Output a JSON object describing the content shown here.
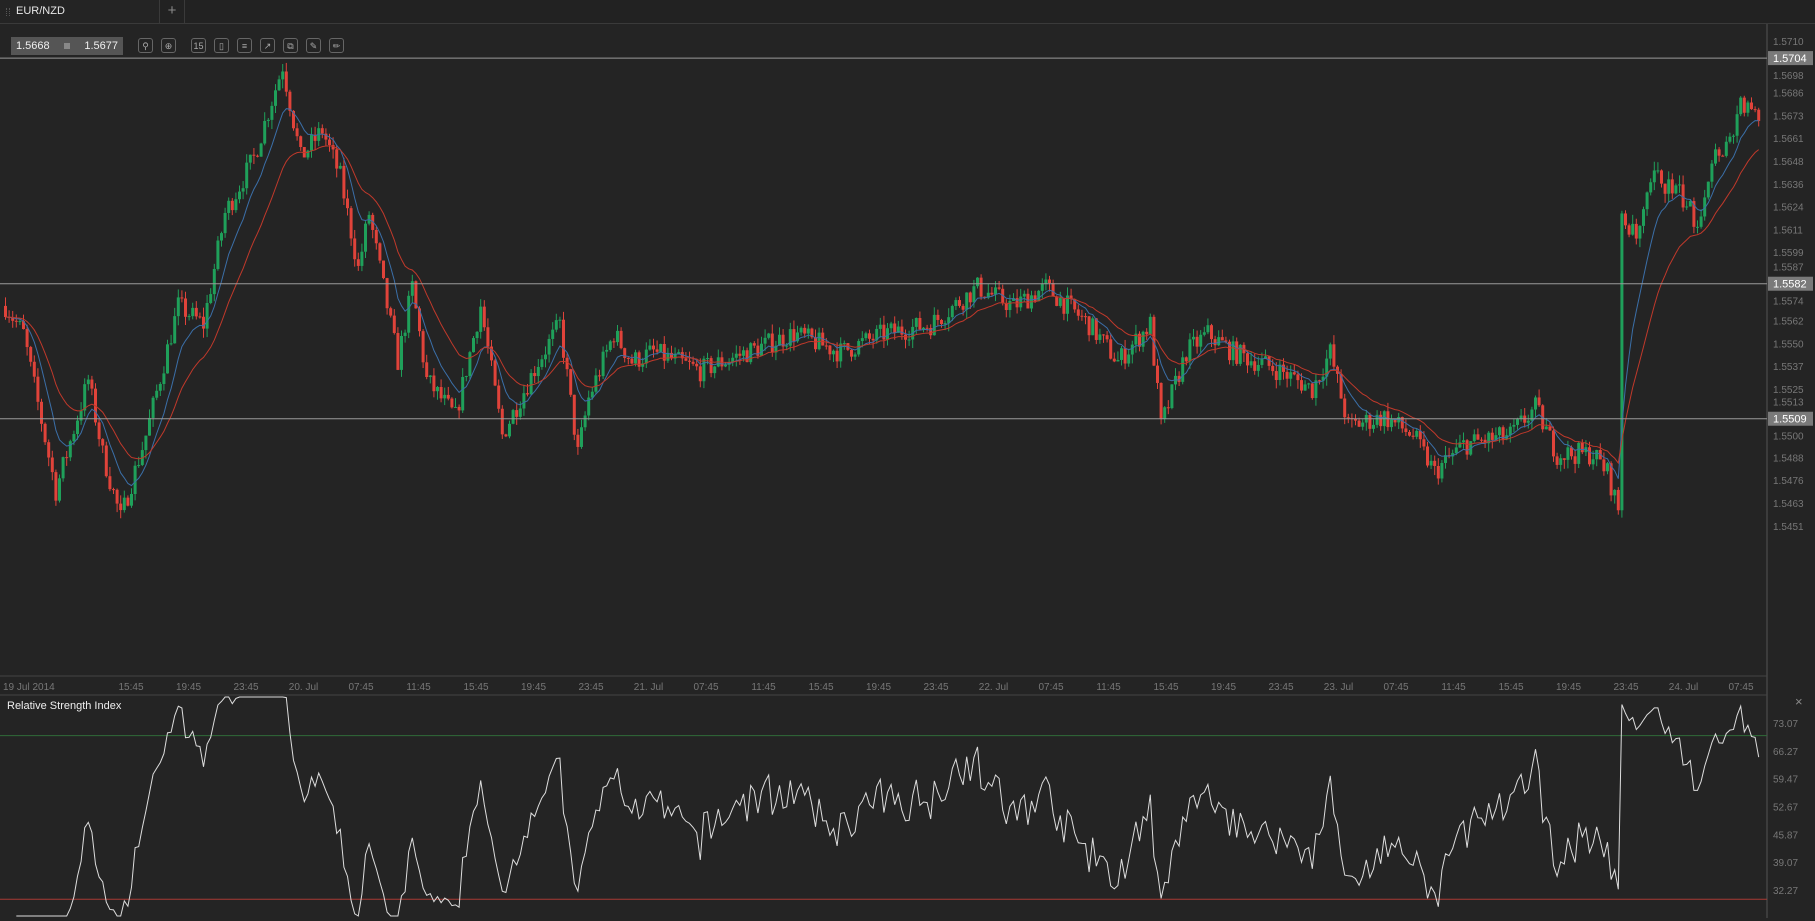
{
  "tab": {
    "symbol": "EUR/NZD",
    "add_label": "+"
  },
  "quote": {
    "bid": "1.5668",
    "ask": "1.5677"
  },
  "toolbar": {
    "icons": [
      "zoom-out-icon",
      "zoom-in-icon",
      "timeframe-15-icon",
      "chart-type-candles-icon",
      "indicators-icon",
      "chart-template-icon",
      "copy-icon",
      "edit-icon",
      "draw-icon"
    ],
    "timeframe_label": "15"
  },
  "colors": {
    "bull": "#1fa05a",
    "bear": "#e0433a",
    "ema_fast": "#3b6fa8",
    "ema_slow": "#c0392b",
    "rsi_line": "#dddddd",
    "rsi_upper": "#2f6b39",
    "rsi_lower": "#a83a34",
    "background": "#242424"
  },
  "price_axis": {
    "labels": [
      "1.5710",
      "1.5698",
      "1.5686",
      "1.5673",
      "1.5661",
      "1.5648",
      "1.5636",
      "1.5624",
      "1.5611",
      "1.5599",
      "1.5587",
      "1.5574",
      "1.5562",
      "1.5550",
      "1.5537",
      "1.5525",
      "1.5513",
      "1.5500",
      "1.5488",
      "1.5476",
      "1.5463",
      "1.5451"
    ],
    "range": [
      1.5451,
      1.571
    ]
  },
  "horizontal_lines": [
    {
      "price": 1.5704,
      "label": "1.5704"
    },
    {
      "price": 1.5582,
      "label": "1.5582"
    },
    {
      "price": 1.5509,
      "label": "1.5509"
    }
  ],
  "time_axis": {
    "labels": [
      "19 Jul 2014",
      "15:45",
      "19:45",
      "23:45",
      "20. Jul",
      "07:45",
      "11:45",
      "15:45",
      "19:45",
      "23:45",
      "21. Jul",
      "07:45",
      "11:45",
      "15:45",
      "19:45",
      "23:45",
      "22. Jul",
      "07:45",
      "11:45",
      "15:45",
      "19:45",
      "23:45",
      "23. Jul",
      "07:45",
      "11:45",
      "15:45",
      "19:45",
      "23:45",
      "24. Jul",
      "07:45"
    ]
  },
  "chart_data": {
    "type": "candlestick",
    "bar_interval": "15 min",
    "close_path": [
      [
        0,
        1.557
      ],
      [
        5,
        1.5555
      ],
      [
        14,
        1.547
      ],
      [
        23,
        1.553
      ],
      [
        27,
        1.549
      ],
      [
        32,
        1.5455
      ],
      [
        39,
        1.55
      ],
      [
        48,
        1.557
      ],
      [
        55,
        1.556
      ],
      [
        61,
        1.562
      ],
      [
        69,
        1.565
      ],
      [
        77,
        1.57
      ],
      [
        82,
        1.565
      ],
      [
        88,
        1.5665
      ],
      [
        93,
        1.564
      ],
      [
        98,
        1.559
      ],
      [
        101,
        1.562
      ],
      [
        106,
        1.557
      ],
      [
        109,
        1.554
      ],
      [
        113,
        1.558
      ],
      [
        117,
        1.553
      ],
      [
        125,
        1.551
      ],
      [
        132,
        1.557
      ],
      [
        138,
        1.55
      ],
      [
        148,
        1.554
      ],
      [
        154,
        1.556
      ],
      [
        159,
        1.549
      ],
      [
        162,
        1.552
      ],
      [
        169,
        1.5555
      ],
      [
        174,
        1.554
      ],
      [
        180,
        1.5545
      ],
      [
        193,
        1.5535
      ],
      [
        206,
        1.5545
      ],
      [
        219,
        1.5555
      ],
      [
        232,
        1.5545
      ],
      [
        244,
        1.5555
      ],
      [
        257,
        1.556
      ],
      [
        270,
        1.558
      ],
      [
        280,
        1.557
      ],
      [
        289,
        1.558
      ],
      [
        301,
        1.556
      ],
      [
        309,
        1.554
      ],
      [
        318,
        1.556
      ],
      [
        321,
        1.5505
      ],
      [
        328,
        1.5545
      ],
      [
        334,
        1.5555
      ],
      [
        341,
        1.5545
      ],
      [
        354,
        1.5535
      ],
      [
        363,
        1.5525
      ],
      [
        368,
        1.5545
      ],
      [
        373,
        1.5505
      ],
      [
        383,
        1.551
      ],
      [
        391,
        1.55
      ],
      [
        397,
        1.548
      ],
      [
        405,
        1.5495
      ],
      [
        418,
        1.55
      ],
      [
        425,
        1.5515
      ],
      [
        431,
        1.549
      ],
      [
        441,
        1.549
      ],
      [
        445,
        1.548
      ],
      [
        448,
        1.546
      ],
      [
        449,
        1.562
      ],
      [
        453,
        1.5605
      ],
      [
        458,
        1.564
      ],
      [
        465,
        1.563
      ],
      [
        470,
        1.5615
      ],
      [
        474,
        1.565
      ],
      [
        479,
        1.566
      ],
      [
        482,
        1.568
      ],
      [
        487,
        1.567
      ]
    ],
    "indicators": [
      "EMA fast (blue)",
      "EMA slow (red)"
    ]
  },
  "rsi": {
    "title": "Relative Strength Index",
    "labels": [
      "73.07",
      "66.27",
      "59.47",
      "52.67",
      "45.87",
      "39.07",
      "32.27"
    ],
    "range": [
      32.27,
      73.07
    ],
    "upper_level": 70,
    "lower_level": 30,
    "close_label": "×"
  }
}
